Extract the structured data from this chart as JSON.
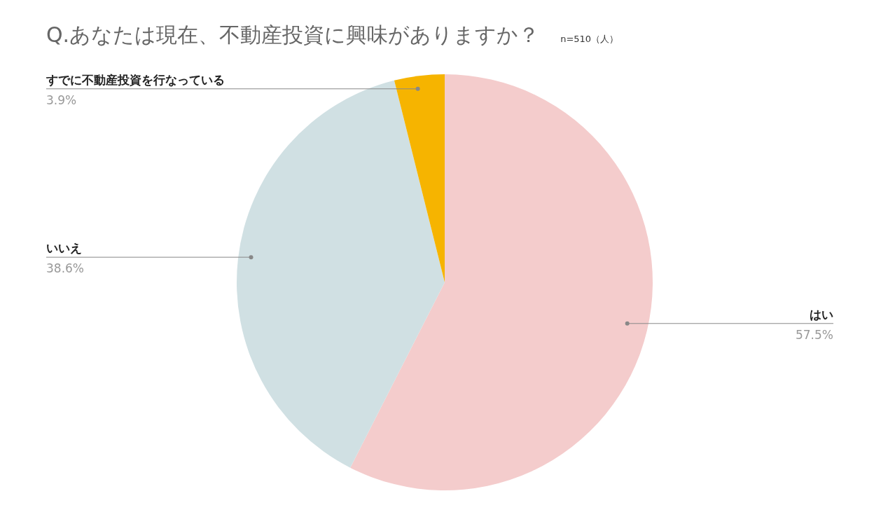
{
  "chart_data": {
    "type": "pie",
    "title": "Q.あなたは現在、不動産投資に興味がありますか？",
    "subtitle": "n=510（人）",
    "categories": [
      "はい",
      "いいえ",
      "すでに不動産投資を行なっている"
    ],
    "values": [
      57.5,
      38.6,
      3.9
    ],
    "colors": [
      "#f4cccc",
      "#d0e0e3",
      "#f6b400"
    ],
    "value_labels": [
      "57.5%",
      "38.6%",
      "3.9%"
    ]
  }
}
